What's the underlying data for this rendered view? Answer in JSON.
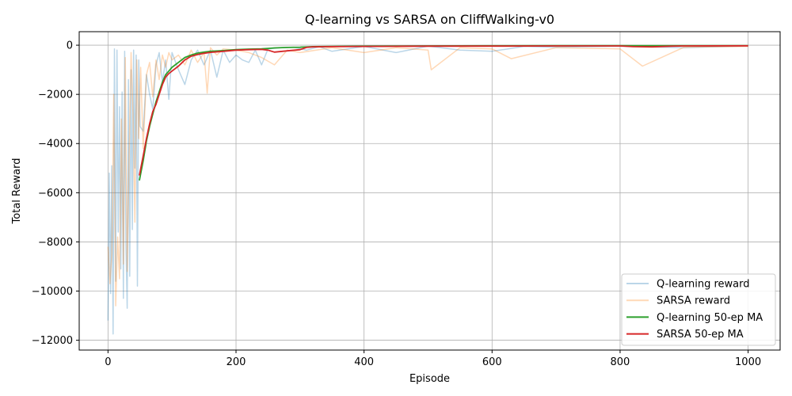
{
  "chart_data": {
    "type": "line",
    "title": "Q-learning vs SARSA on CliffWalking-v0",
    "xlabel": "Episode",
    "ylabel": "Total Reward",
    "xlim": [
      -45,
      1050
    ],
    "ylim": [
      -12400,
      550
    ],
    "xticks": [
      0,
      200,
      400,
      600,
      800,
      1000
    ],
    "yticks": [
      -12000,
      -10000,
      -8000,
      -6000,
      -4000,
      -2000,
      0
    ],
    "xtick_labels": [
      "0",
      "200",
      "400",
      "600",
      "800",
      "1000"
    ],
    "ytick_labels": [
      "−12000",
      "−10000",
      "−8000",
      "−6000",
      "−4000",
      "−2000",
      "0"
    ],
    "grid": true,
    "legend_position": "bottom-right",
    "series": [
      {
        "name": "Q-learning reward",
        "color": "#1f77b4",
        "opacity": 0.3,
        "x": [
          0,
          2,
          4,
          6,
          8,
          10,
          12,
          14,
          16,
          18,
          20,
          22,
          24,
          26,
          28,
          30,
          32,
          34,
          36,
          38,
          40,
          42,
          44,
          46,
          48,
          50,
          55,
          60,
          65,
          70,
          75,
          80,
          85,
          90,
          95,
          100,
          110,
          120,
          130,
          140,
          150,
          160,
          170,
          180,
          190,
          200,
          210,
          220,
          230,
          240,
          250,
          270,
          290,
          310,
          330,
          350,
          400,
          450,
          500,
          550,
          600,
          650,
          700,
          800,
          900,
          1000
        ],
        "values": [
          -11200,
          -5200,
          -10100,
          -4900,
          -11750,
          -150,
          -9600,
          -200,
          -7600,
          -2500,
          -9100,
          -1900,
          -10300,
          -250,
          -8100,
          -10700,
          -1400,
          -9400,
          -1000,
          -7500,
          -200,
          -5000,
          -400,
          -9800,
          -600,
          -3300,
          -3500,
          -1200,
          -2000,
          -2600,
          -800,
          -300,
          -1500,
          -600,
          -2200,
          -300,
          -1000,
          -1600,
          -600,
          -200,
          -800,
          -200,
          -1300,
          -200,
          -700,
          -400,
          -600,
          -700,
          -200,
          -800,
          -150,
          -100,
          -80,
          -200,
          -60,
          -250,
          -50,
          -300,
          -40,
          -200,
          -250,
          -50,
          -80,
          -40,
          -100,
          -30
        ]
      },
      {
        "name": "SARSA reward",
        "color": "#ff7f0e",
        "opacity": 0.3,
        "x": [
          0,
          3,
          6,
          9,
          12,
          15,
          18,
          21,
          24,
          27,
          30,
          33,
          36,
          39,
          42,
          45,
          48,
          51,
          55,
          60,
          65,
          70,
          75,
          80,
          85,
          90,
          95,
          100,
          110,
          120,
          130,
          140,
          150,
          155,
          160,
          170,
          180,
          200,
          220,
          240,
          260,
          280,
          300,
          350,
          400,
          450,
          500,
          505,
          550,
          600,
          630,
          700,
          800,
          835,
          900,
          1000
        ],
        "values": [
          -8200,
          -9700,
          -8500,
          -2000,
          -10600,
          -7800,
          -9500,
          -3000,
          -8900,
          -500,
          -9200,
          -4600,
          -300,
          -2800,
          -7200,
          -600,
          -3800,
          -900,
          -4200,
          -1200,
          -700,
          -2100,
          -600,
          -1400,
          -400,
          -900,
          -300,
          -600,
          -400,
          -800,
          -200,
          -700,
          -300,
          -1950,
          -100,
          -400,
          -150,
          -200,
          -300,
          -500,
          -800,
          -200,
          -300,
          -100,
          -300,
          -100,
          -200,
          -1000,
          -100,
          -150,
          -550,
          -100,
          -150,
          -850,
          -80,
          -50
        ]
      },
      {
        "name": "Q-learning 50-ep MA",
        "color": "#2ca02c",
        "opacity": 1,
        "x": [
          49,
          55,
          60,
          65,
          70,
          75,
          80,
          85,
          90,
          95,
          100,
          110,
          120,
          130,
          140,
          150,
          160,
          180,
          200,
          220,
          240,
          250,
          260,
          280,
          300,
          320,
          350,
          400,
          450,
          500,
          600,
          700,
          800,
          900,
          1000
        ],
        "values": [
          -5500,
          -4700,
          -3900,
          -3300,
          -2800,
          -2300,
          -1900,
          -1500,
          -1200,
          -1050,
          -900,
          -700,
          -500,
          -400,
          -320,
          -280,
          -250,
          -220,
          -180,
          -160,
          -150,
          -130,
          -110,
          -90,
          -80,
          -60,
          -50,
          -40,
          -35,
          -30,
          -25,
          -20,
          -20,
          -20,
          -18
        ]
      },
      {
        "name": "SARSA 50-ep MA",
        "color": "#d62728",
        "opacity": 1,
        "x": [
          49,
          55,
          60,
          65,
          70,
          75,
          80,
          85,
          90,
          95,
          100,
          110,
          120,
          130,
          140,
          150,
          160,
          180,
          200,
          220,
          240,
          250,
          260,
          280,
          300,
          310,
          320,
          350,
          400,
          450,
          500,
          600,
          700,
          800,
          820,
          850,
          880,
          900,
          1000
        ],
        "values": [
          -5300,
          -4500,
          -3800,
          -3200,
          -2700,
          -2400,
          -2000,
          -1600,
          -1300,
          -1150,
          -1050,
          -850,
          -600,
          -450,
          -380,
          -330,
          -290,
          -250,
          -200,
          -180,
          -170,
          -200,
          -280,
          -230,
          -180,
          -90,
          -70,
          -60,
          -50,
          -45,
          -40,
          -35,
          -30,
          -30,
          -60,
          -70,
          -40,
          -30,
          -25
        ]
      }
    ]
  }
}
